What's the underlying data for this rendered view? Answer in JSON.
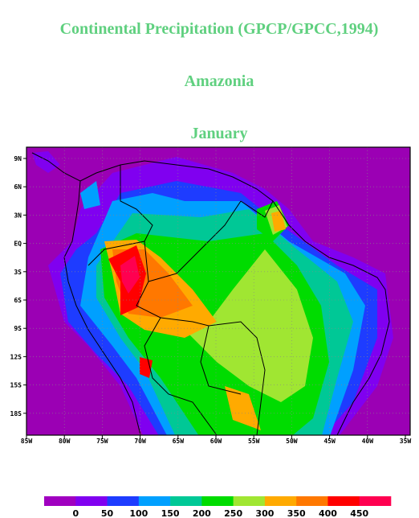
{
  "title": "Continental Precipitation (GPCP/GPCC,1994)",
  "region": "Amazonia",
  "month": "January",
  "map": {
    "lat_ticks": [
      "9N",
      "6N",
      "3N",
      "EQ",
      "3S",
      "6S",
      "9S",
      "12S",
      "15S",
      "18S"
    ],
    "lon_ticks": [
      "85W",
      "80W",
      "75W",
      "70W",
      "65W",
      "60W",
      "55W",
      "50W",
      "45W",
      "40W",
      "35W"
    ]
  },
  "colorbar": {
    "levels": [
      0,
      50,
      100,
      150,
      200,
      250,
      300,
      350,
      400,
      450
    ],
    "colors": [
      "#a000c0",
      "#8000f0",
      "#1e3cff",
      "#00a0ff",
      "#00c896",
      "#00dc00",
      "#a0e632",
      "#ffaa00",
      "#ff7800",
      "#ff0000",
      "#ff0050"
    ]
  }
}
